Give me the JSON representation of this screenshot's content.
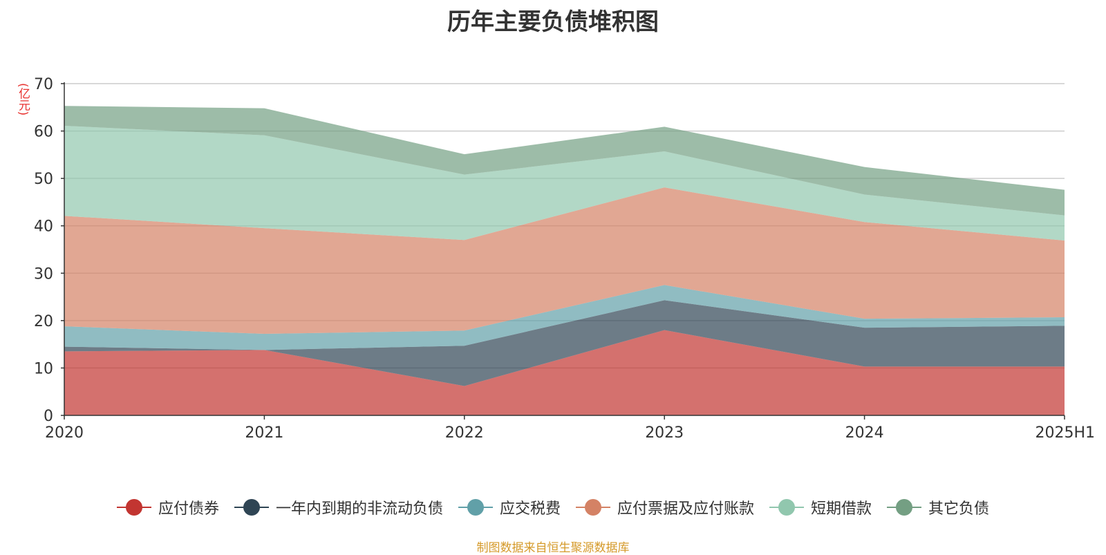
{
  "chart_data": {
    "type": "area",
    "stacked": true,
    "title": "历年主要负债堆积图",
    "ylabel": "(亿元)",
    "categories": [
      "2020",
      "2021",
      "2022",
      "2023",
      "2024",
      "2025H1"
    ],
    "ylim": [
      0,
      70
    ],
    "yticks": [
      "0",
      "10",
      "20",
      "30",
      "40",
      "50",
      "60",
      "70"
    ],
    "grid": true,
    "legend_position": "bottom",
    "series": [
      {
        "name": "应付债券",
        "color": "#c23531",
        "values": [
          13.5,
          13.8,
          6.2,
          18.0,
          10.3,
          10.3
        ]
      },
      {
        "name": "一年内到期的非流动负债",
        "color": "#2f4554",
        "values": [
          1.0,
          0.0,
          8.5,
          6.3,
          8.2,
          8.6
        ]
      },
      {
        "name": "应交税费",
        "color": "#61a0a8",
        "values": [
          4.3,
          3.4,
          3.2,
          3.2,
          1.9,
          1.8
        ]
      },
      {
        "name": "应付票据及应付账款",
        "color": "#d48265",
        "values": [
          23.3,
          22.3,
          19.1,
          20.6,
          20.4,
          16.2
        ]
      },
      {
        "name": "短期借款",
        "color": "#91c7ae",
        "values": [
          19.0,
          19.6,
          13.8,
          7.6,
          5.8,
          5.3
        ]
      },
      {
        "name": "其它负债",
        "color": "#749f83",
        "values": [
          4.2,
          5.7,
          4.3,
          5.2,
          5.8,
          5.4
        ]
      }
    ]
  },
  "source_note": "制图数据来自恒生聚源数据库"
}
